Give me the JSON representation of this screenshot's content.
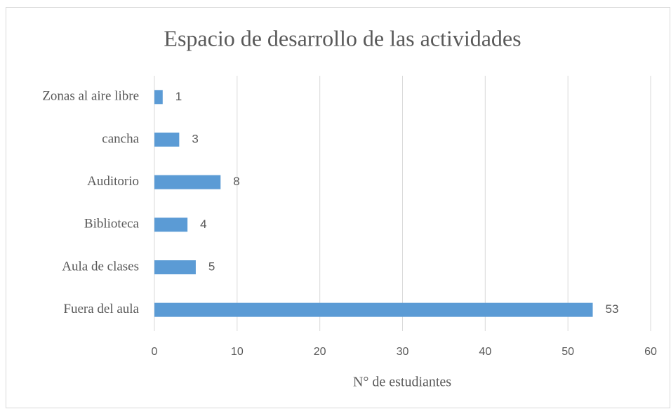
{
  "chart_data": {
    "type": "bar",
    "orientation": "horizontal",
    "title": "Espacio de desarrollo de las actividades",
    "categories": [
      "Zonas al aire libre",
      "cancha",
      "Auditorio",
      "Biblioteca",
      "Aula de clases",
      "Fuera del aula"
    ],
    "values": [
      1,
      3,
      8,
      4,
      5,
      53
    ],
    "color": "#5b9bd5",
    "x_label": "N° de estudiantes",
    "xlim": [
      0,
      60
    ],
    "xticks": [
      0,
      10,
      20,
      30,
      40,
      50,
      60
    ],
    "grid": true
  }
}
